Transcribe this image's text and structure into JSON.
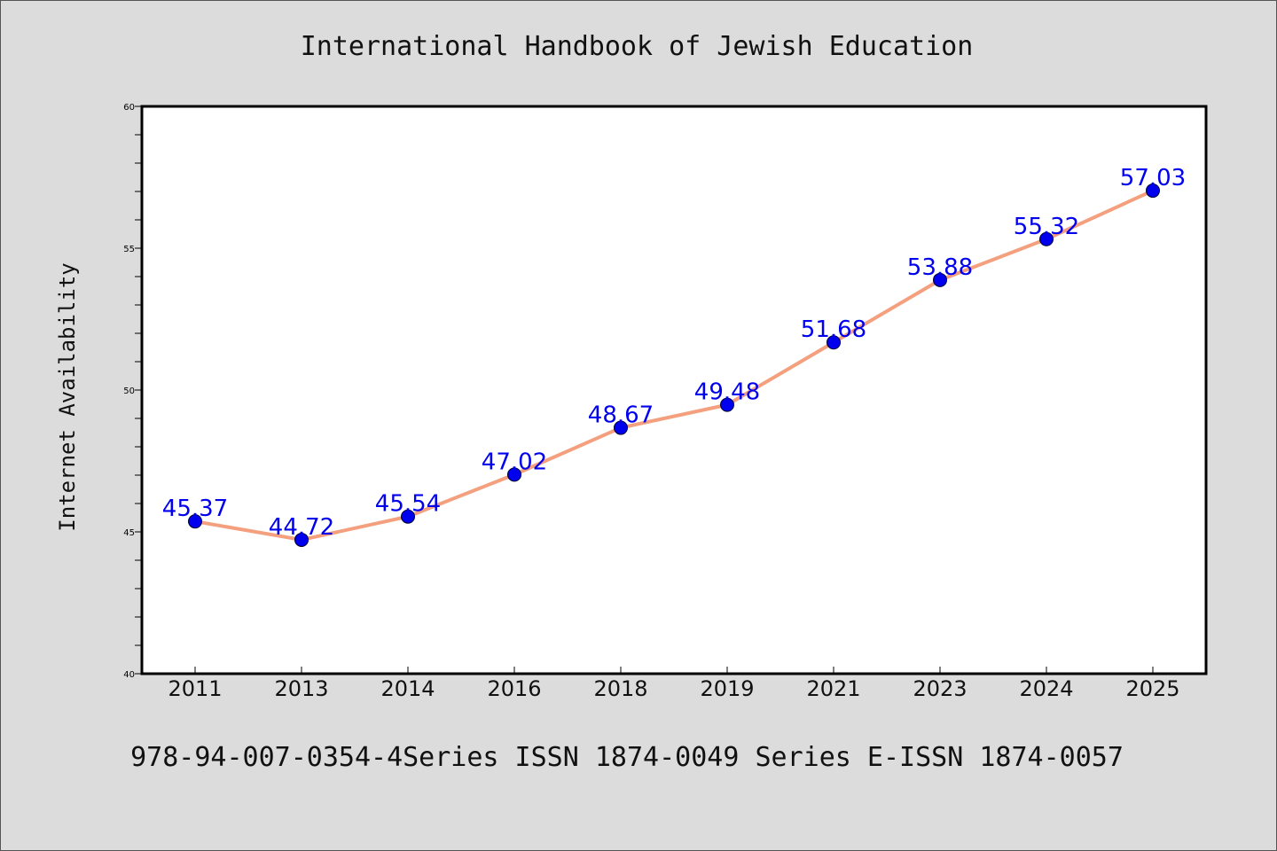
{
  "chart_data": {
    "type": "line",
    "title": "International Handbook of Jewish Education",
    "ylabel": "Internet Availability",
    "xlabel": "",
    "footer": "978-94-007-0354-4Series ISSN 1874-0049 Series E-ISSN 1874-0057",
    "categories": [
      "2011",
      "2013",
      "2014",
      "2016",
      "2018",
      "2019",
      "2021",
      "2023",
      "2024",
      "2025"
    ],
    "values": [
      45.37,
      44.72,
      45.54,
      47.02,
      48.67,
      49.48,
      51.68,
      53.88,
      55.32,
      57.03
    ],
    "data_labels": [
      "45.37",
      "44.72",
      "45.54",
      "47.02",
      "48.67",
      "49.48",
      "51.68",
      "53.88",
      "55.32",
      "57.03"
    ],
    "ylim": [
      40,
      60
    ],
    "yticks": [
      "40",
      "45",
      "50",
      "55",
      "60"
    ],
    "grid": false,
    "legend": "none",
    "colors": {
      "background": "#dcdcdc",
      "plot_background": "#ffffff",
      "line": "#f4a07e",
      "marker": "#0000ee",
      "label": "#0000ee"
    }
  }
}
